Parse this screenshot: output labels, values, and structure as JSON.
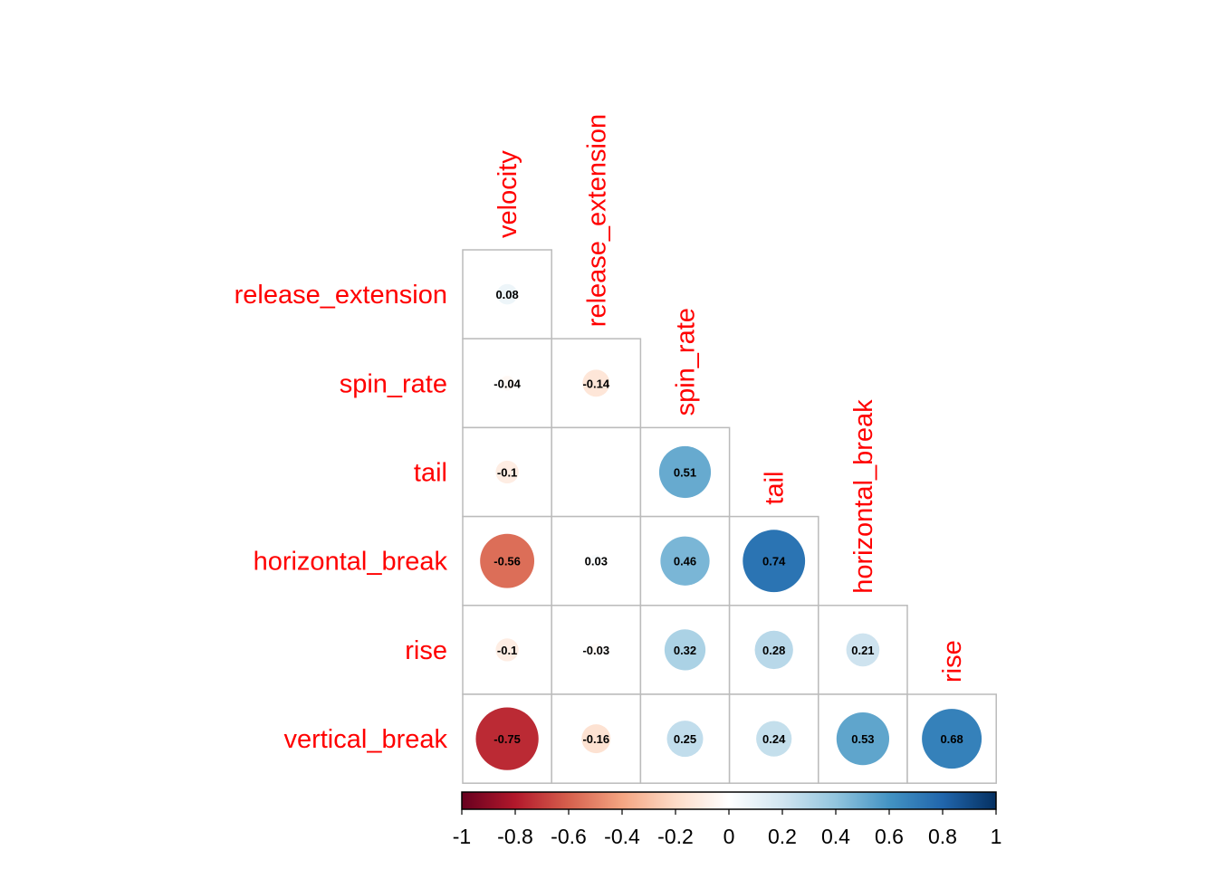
{
  "chart_data": {
    "type": "heatmap",
    "style": "correlation-circles-lower-triangle",
    "variables": [
      "velocity",
      "release_extension",
      "spin_rate",
      "tail",
      "horizontal_break",
      "rise",
      "vertical_break"
    ],
    "column_labels": [
      "velocity",
      "release_extension",
      "spin_rate",
      "tail",
      "horizontal_break",
      "rise"
    ],
    "row_labels": [
      "release_extension",
      "spin_rate",
      "tail",
      "horizontal_break",
      "rise",
      "vertical_break"
    ],
    "values": [
      [
        0.08
      ],
      [
        -0.04,
        -0.14
      ],
      [
        -0.1,
        null,
        0.51
      ],
      [
        -0.56,
        0.03,
        0.46,
        0.74
      ],
      [
        -0.1,
        -0.03,
        0.32,
        0.28,
        0.21
      ],
      [
        -0.75,
        -0.16,
        0.25,
        0.24,
        0.53,
        0.68
      ]
    ],
    "value_labels": [
      [
        "0.08"
      ],
      [
        "-0.04",
        "-0.14"
      ],
      [
        "-0.1",
        "",
        "0.51"
      ],
      [
        "-0.56",
        "0.03",
        "0.46",
        "0.74"
      ],
      [
        "-0.1",
        "-0.03",
        "0.32",
        "0.28",
        "0.21"
      ],
      [
        "-0.75",
        "-0.16",
        "0.25",
        "0.24",
        "0.53",
        "0.68"
      ]
    ],
    "colorbar": {
      "range": [
        -1,
        1
      ],
      "ticks": [
        "-1",
        "-0.8",
        "-0.6",
        "-0.4",
        "-0.2",
        "0",
        "0.2",
        "0.4",
        "0.6",
        "0.8",
        "1"
      ],
      "palette": [
        "#67001F",
        "#B2182B",
        "#D6604D",
        "#F4A582",
        "#FDDBC7",
        "#FFFFFF",
        "#D1E5F0",
        "#92C5DE",
        "#4393C3",
        "#2166AC",
        "#053061"
      ],
      "placement": "bottom"
    },
    "label_color": "#FF0000",
    "grid_color": "#BBBBBB"
  }
}
